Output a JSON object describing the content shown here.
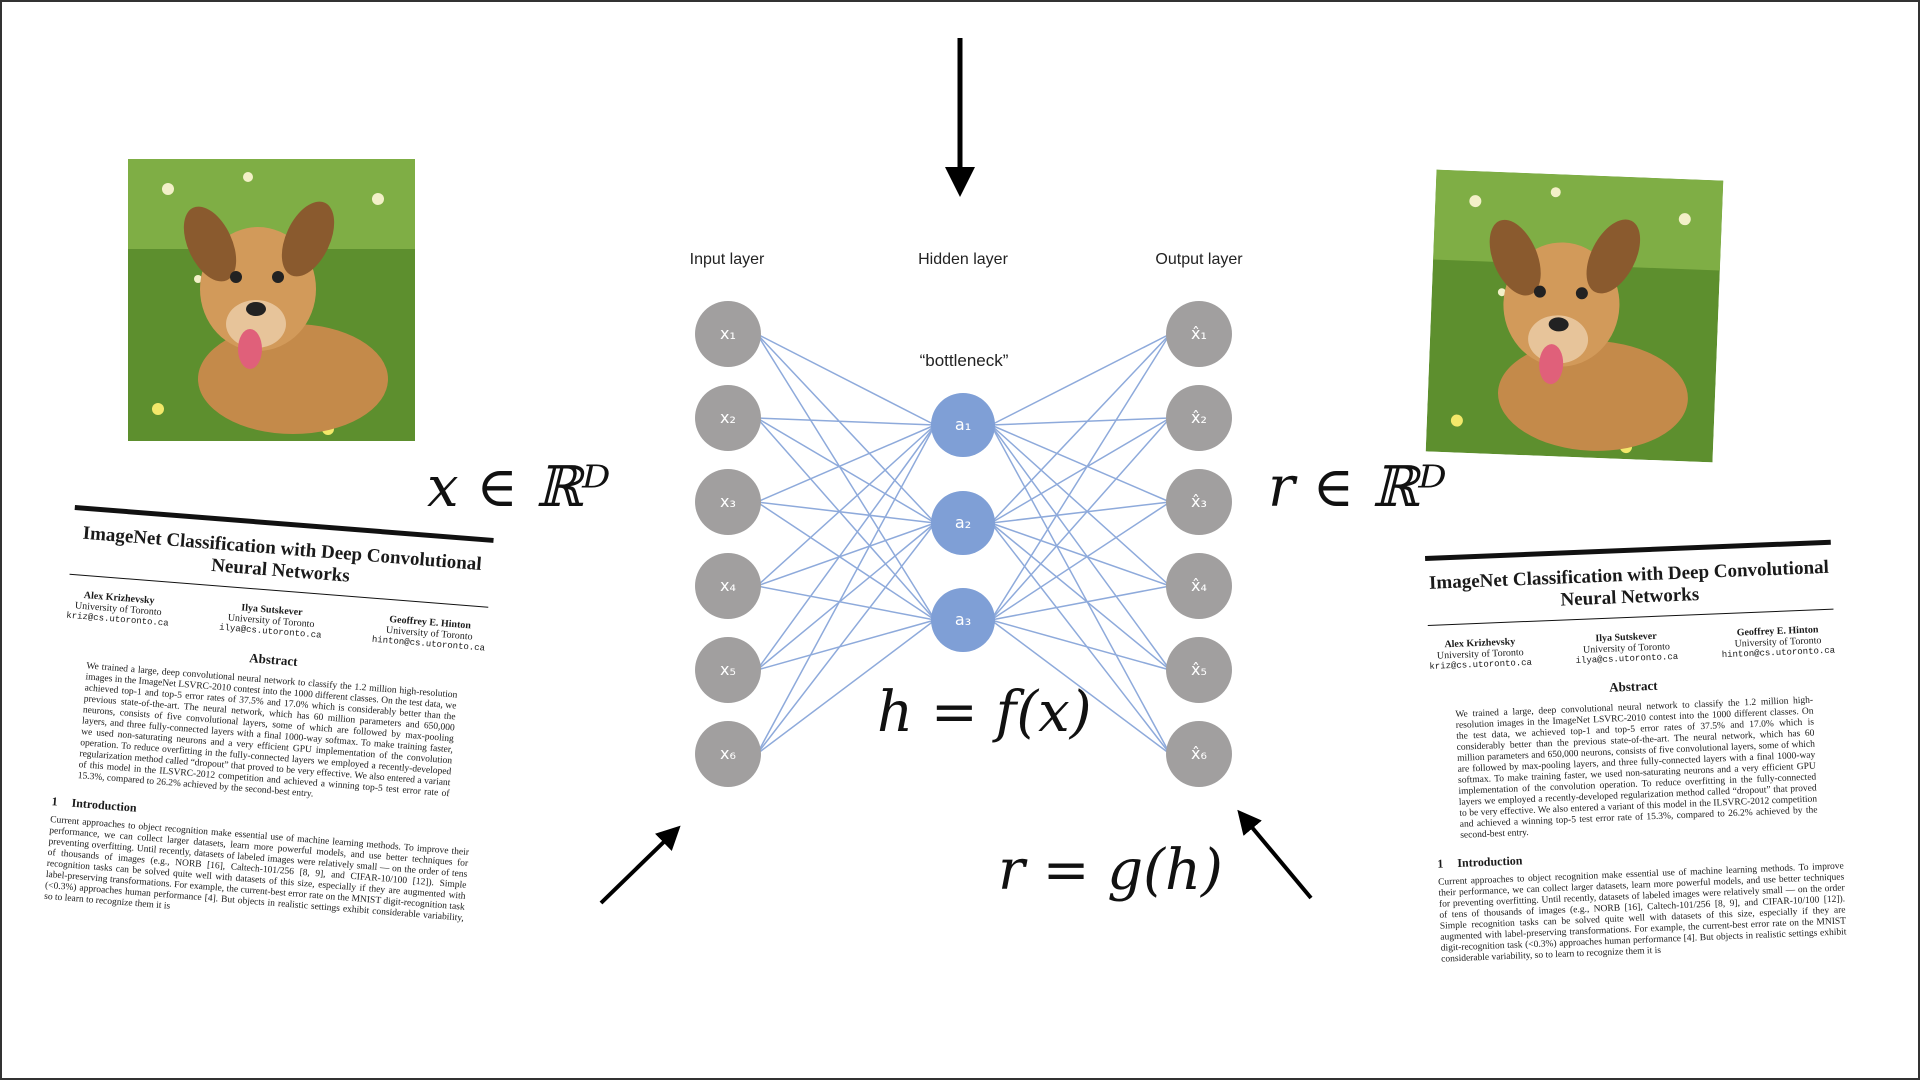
{
  "diagram": {
    "input_label": "Input layer",
    "hidden_label": "Hidden layer",
    "output_label": "Output layer",
    "bottleneck_label": "“bottleneck”",
    "input_nodes": [
      "x₁",
      "x₂",
      "x₃",
      "x₄",
      "x₅",
      "x₆"
    ],
    "hidden_nodes": [
      "a₁",
      "a₂",
      "a₃"
    ],
    "output_nodes": [
      "x̂₁",
      "x̂₂",
      "x̂₃",
      "x̂₄",
      "x̂₅",
      "x̂₆"
    ],
    "colors": {
      "input_node": "#a19f9f",
      "hidden_node": "#7f9fd6",
      "output_node": "#a19f9f",
      "edge": "#8eaadb",
      "arrow": "#000000"
    }
  },
  "math": {
    "x_in": "x ∈ ℝᴰ",
    "r_in": "r ∈ ℝᴰ",
    "encoder": "h = f(x)",
    "decoder": "r = g(h)"
  },
  "paper": {
    "title": "ImageNet Classification with Deep Convolutional Neural Networks",
    "authors": [
      {
        "name": "Alex Krizhevsky",
        "affiliation": "University of Toronto",
        "email": "kriz@cs.utoronto.ca"
      },
      {
        "name": "Ilya Sutskever",
        "affiliation": "University of Toronto",
        "email": "ilya@cs.utoronto.ca"
      },
      {
        "name": "Geoffrey E. Hinton",
        "affiliation": "University of Toronto",
        "email": "hinton@cs.utoronto.ca"
      }
    ],
    "abstract_heading": "Abstract",
    "abstract": "We trained a large, deep convolutional neural network to classify the 1.2 million high-resolution images in the ImageNet LSVRC-2010 contest into the 1000 different classes. On the test data, we achieved top-1 and top-5 error rates of 37.5% and 17.0% which is considerably better than the previous state-of-the-art. The neural network, which has 60 million parameters and 650,000 neurons, consists of five convolutional layers, some of which are followed by max-pooling layers, and three fully-connected layers with a final 1000-way softmax. To make training faster, we used non-saturating neurons and a very efficient GPU implementation of the convolution operation. To reduce overfitting in the fully-connected layers we employed a recently-developed regularization method called “dropout” that proved to be very effective. We also entered a variant of this model in the ILSVRC-2012 competition and achieved a winning top-5 test error rate of 15.3%, compared to 26.2% achieved by the second-best entry.",
    "section_number": "1",
    "section_title": "Introduction",
    "intro": "Current approaches to object recognition make essential use of machine learning methods. To improve their performance, we can collect larger datasets, learn more powerful models, and use better techniques for preventing overfitting. Until recently, datasets of labeled images were relatively small — on the order of tens of thousands of images (e.g., NORB [16], Caltech-101/256 [8, 9], and CIFAR-10/100 [12]). Simple recognition tasks can be solved quite well with datasets of this size, especially if they are augmented with label-preserving transformations. For example, the current-best error rate on the MNIST digit-recognition task (<0.3%) approaches human performance [4]. But objects in realistic settings exhibit considerable variability, so to learn to recognize them it is"
  }
}
